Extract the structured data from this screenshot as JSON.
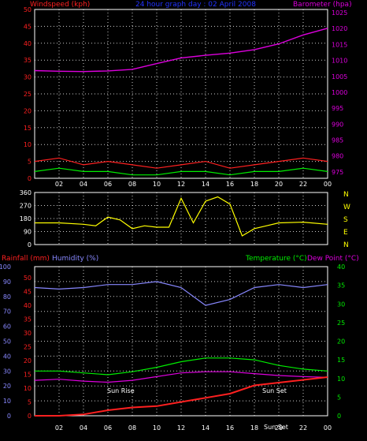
{
  "header": {
    "left_label": "Windspeed (kph)",
    "title": "24 hour graph day : 02 April 2008",
    "right_label": "Barometer (hpa)"
  },
  "colors": {
    "windspeed": "#ff2020",
    "gust": "#00ee00",
    "barometer": "#dd00dd",
    "direction": "#ffff00",
    "rainfall": "#ff2020",
    "humidity": "#8888ff",
    "temperature": "#00ee00",
    "dewpoint": "#dd00dd",
    "grid": "#ffffff",
    "title": "#2233ff",
    "axis_text": "#ffffff"
  },
  "direction_labels": [
    "N",
    "W",
    "S",
    "E",
    "N"
  ],
  "bottom_header": {
    "rainfall": "Rainfall (mm)",
    "humidity": "Humidity (%)",
    "temperature": "Temperature (°C)",
    "dewpoint": "Dew Point (°C)"
  },
  "annotations": {
    "sunrise": "Sun Rise",
    "sunset": "Sun Set",
    "sunset_time": "Sun Set"
  },
  "chart_data": [
    {
      "type": "line",
      "panel": "wind_barometer",
      "x_ticks": [
        "02",
        "04",
        "06",
        "08",
        "10",
        "12",
        "14",
        "16",
        "18",
        "20",
        "22",
        "00"
      ],
      "y_left_ticks": [
        0,
        5,
        10,
        15,
        20,
        25,
        30,
        35,
        40,
        45,
        50
      ],
      "y_left_lim": [
        0,
        50
      ],
      "y_right_ticks": [
        975,
        980,
        985,
        990,
        995,
        1000,
        1005,
        1010,
        1015,
        1020,
        1025
      ],
      "y_right_lim": [
        973,
        1026
      ],
      "x_hours": [
        0,
        2,
        4,
        6,
        8,
        10,
        12,
        14,
        16,
        18,
        20,
        22,
        24
      ],
      "series": [
        {
          "name": "Barometer (hpa)",
          "axis": "right",
          "values": [
            1006.8,
            1006.6,
            1006.5,
            1006.7,
            1007.2,
            1009.0,
            1010.8,
            1011.6,
            1012.3,
            1013.4,
            1015.2,
            1018.0,
            1020.1
          ]
        },
        {
          "name": "Windspeed (kph)",
          "axis": "left",
          "values": [
            5,
            6,
            4,
            5,
            4,
            3,
            4,
            5,
            3,
            4,
            5,
            6,
            5
          ]
        },
        {
          "name": "Gust (kph)",
          "axis": "left",
          "values": [
            2,
            3,
            2,
            2,
            1,
            1,
            2,
            2,
            1,
            2,
            2,
            3,
            2
          ]
        }
      ],
      "grid": true
    },
    {
      "type": "line",
      "panel": "wind_direction",
      "y_ticks": [
        0,
        90,
        180,
        270,
        360
      ],
      "y_lim": [
        0,
        360
      ],
      "x_hours": [
        0,
        2,
        4,
        5,
        6,
        7,
        8,
        9,
        10,
        11,
        12,
        13,
        14,
        15,
        16,
        17,
        18,
        19,
        20,
        22,
        24
      ],
      "series": [
        {
          "name": "Direction (°)",
          "values": [
            150,
            150,
            140,
            130,
            190,
            170,
            110,
            130,
            120,
            120,
            320,
            150,
            300,
            330,
            280,
            60,
            110,
            130,
            150,
            155,
            140
          ]
        }
      ],
      "grid": true
    },
    {
      "type": "line",
      "panel": "rain_humidity_temp",
      "y_rain_ticks": [
        0,
        5,
        10,
        15,
        20,
        25,
        30,
        35,
        40,
        45,
        50
      ],
      "y_rain_lim": [
        0,
        54
      ],
      "y_humidity_ticks": [
        0,
        10,
        20,
        30,
        40,
        50,
        60,
        70,
        80,
        90,
        100
      ],
      "y_humidity_lim": [
        0,
        100
      ],
      "y_temp_ticks": [
        0,
        5,
        10,
        15,
        20,
        25,
        30,
        35,
        40
      ],
      "y_temp_lim": [
        0,
        40
      ],
      "x_hours": [
        0,
        2,
        4,
        6,
        8,
        10,
        12,
        14,
        16,
        18,
        20,
        22,
        24
      ],
      "series": [
        {
          "name": "Humidity (%)",
          "axis": "humidity",
          "values": [
            86,
            85,
            86,
            88,
            88,
            90,
            86,
            74,
            78,
            86,
            88,
            86,
            88
          ]
        },
        {
          "name": "Temperature (°C)",
          "axis": "temp",
          "values": [
            12,
            12,
            11.5,
            11,
            11.8,
            13,
            14.5,
            15.5,
            15.5,
            15,
            13.5,
            12.5,
            12
          ]
        },
        {
          "name": "Dew Point (°C)",
          "axis": "temp",
          "values": [
            9.5,
            9.8,
            9.3,
            9,
            9.5,
            10.5,
            11.5,
            11.8,
            11.8,
            11.3,
            10.8,
            10.5,
            10.3
          ]
        },
        {
          "name": "Rainfall (mm)",
          "axis": "rain",
          "values": [
            0,
            0,
            0.5,
            2,
            3,
            3.5,
            5,
            6.5,
            8,
            11,
            12,
            13,
            14
          ]
        }
      ],
      "grid": true
    }
  ]
}
